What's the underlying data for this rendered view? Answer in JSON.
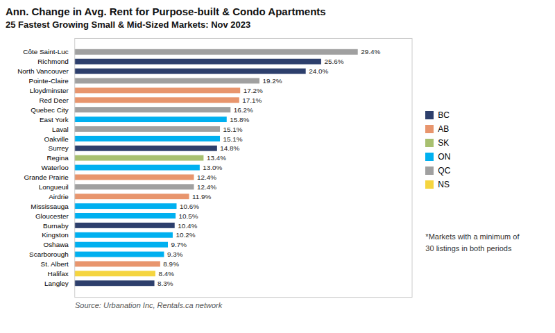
{
  "chart_data": {
    "type": "bar",
    "orientation": "horizontal",
    "title": "Ann. Change in Avg. Rent for Purpose-built & Condo Apartments",
    "subtitle": "25 Fastest Growing Small & Mid-Sized Markets: Nov 2023",
    "source": "Source: Urbanation Inc, Rentals.ca network",
    "footnote": "*Markets with a minimum of\n30 listings in both periods",
    "categories": [
      "Côte Saint-Luc",
      "Richmond",
      "North Vancouver",
      "Pointe-Claire",
      "Lloydminster",
      "Red Deer",
      "Quebec City",
      "East York",
      "Laval",
      "Oakville",
      "Surrey",
      "Regina",
      "Waterloo",
      "Grande Prairie",
      "Longueuil",
      "Airdrie",
      "Mississauga",
      "Gloucester",
      "Burnaby",
      "Kingston",
      "Oshawa",
      "Scarborough",
      "St. Albert",
      "Halifax",
      "Langley"
    ],
    "series": [
      {
        "name": "BC",
        "color": "#2d3f6c",
        "values": [
          null,
          25.6,
          24.0,
          null,
          null,
          null,
          null,
          null,
          null,
          null,
          14.8,
          null,
          null,
          null,
          null,
          null,
          null,
          null,
          10.4,
          null,
          null,
          null,
          null,
          null,
          8.3
        ],
        "value_labels": [
          null,
          "25.6%",
          "24.0%",
          null,
          null,
          null,
          null,
          null,
          null,
          null,
          "14.8%",
          null,
          null,
          null,
          null,
          null,
          null,
          null,
          "10.4%",
          null,
          null,
          null,
          null,
          null,
          "8.3%"
        ]
      },
      {
        "name": "AB",
        "color": "#e8956d",
        "values": [
          null,
          null,
          null,
          null,
          17.2,
          17.1,
          null,
          null,
          null,
          null,
          null,
          null,
          null,
          12.4,
          null,
          11.9,
          null,
          null,
          null,
          null,
          null,
          null,
          8.9,
          null,
          null
        ],
        "value_labels": [
          null,
          null,
          null,
          null,
          "17.2%",
          "17.1%",
          null,
          null,
          null,
          null,
          null,
          null,
          null,
          "12.4%",
          null,
          "11.9%",
          null,
          null,
          null,
          null,
          null,
          null,
          "8.9%",
          null,
          null
        ]
      },
      {
        "name": "SK",
        "color": "#a8c070",
        "values": [
          null,
          null,
          null,
          null,
          null,
          null,
          null,
          null,
          null,
          null,
          null,
          13.4,
          null,
          null,
          null,
          null,
          null,
          null,
          null,
          null,
          null,
          null,
          null,
          null,
          null
        ],
        "value_labels": [
          null,
          null,
          null,
          null,
          null,
          null,
          null,
          null,
          null,
          null,
          null,
          "13.4%",
          null,
          null,
          null,
          null,
          null,
          null,
          null,
          null,
          null,
          null,
          null,
          null,
          null
        ]
      },
      {
        "name": "ON",
        "color": "#00b0f0",
        "values": [
          null,
          null,
          null,
          null,
          null,
          null,
          null,
          15.8,
          null,
          15.1,
          null,
          null,
          13.0,
          null,
          null,
          null,
          10.6,
          10.5,
          null,
          10.2,
          9.7,
          9.3,
          null,
          null,
          null
        ],
        "value_labels": [
          null,
          null,
          null,
          null,
          null,
          null,
          null,
          "15.8%",
          null,
          "15.1%",
          null,
          null,
          "13.0%",
          null,
          null,
          null,
          "10.6%",
          "10.5%",
          null,
          "10.2%",
          "9.7%",
          "9.3%",
          null,
          null,
          null
        ]
      },
      {
        "name": "QC",
        "color": "#a0a0a0",
        "values": [
          29.4,
          null,
          null,
          19.2,
          null,
          null,
          16.2,
          null,
          15.1,
          null,
          null,
          null,
          null,
          null,
          12.4,
          null,
          null,
          null,
          null,
          null,
          null,
          null,
          null,
          null,
          null
        ],
        "value_labels": [
          "29.4%",
          null,
          null,
          "19.2%",
          null,
          null,
          "16.2%",
          null,
          "15.1%",
          null,
          null,
          null,
          null,
          null,
          "12.4%",
          null,
          null,
          null,
          null,
          null,
          null,
          null,
          null,
          null,
          null
        ]
      },
      {
        "name": "NS",
        "color": "#f5d53f",
        "values": [
          null,
          null,
          null,
          null,
          null,
          null,
          null,
          null,
          null,
          null,
          null,
          null,
          null,
          null,
          null,
          null,
          null,
          null,
          null,
          null,
          null,
          null,
          null,
          8.4,
          null
        ],
        "value_labels": [
          null,
          null,
          null,
          null,
          null,
          null,
          null,
          null,
          null,
          null,
          null,
          null,
          null,
          null,
          null,
          null,
          null,
          null,
          null,
          null,
          null,
          null,
          null,
          "8.4%",
          null
        ]
      }
    ],
    "xlim": [
      0,
      35
    ],
    "tick_labels": "y",
    "grid": false,
    "legend": "right",
    "data_labels": true
  }
}
